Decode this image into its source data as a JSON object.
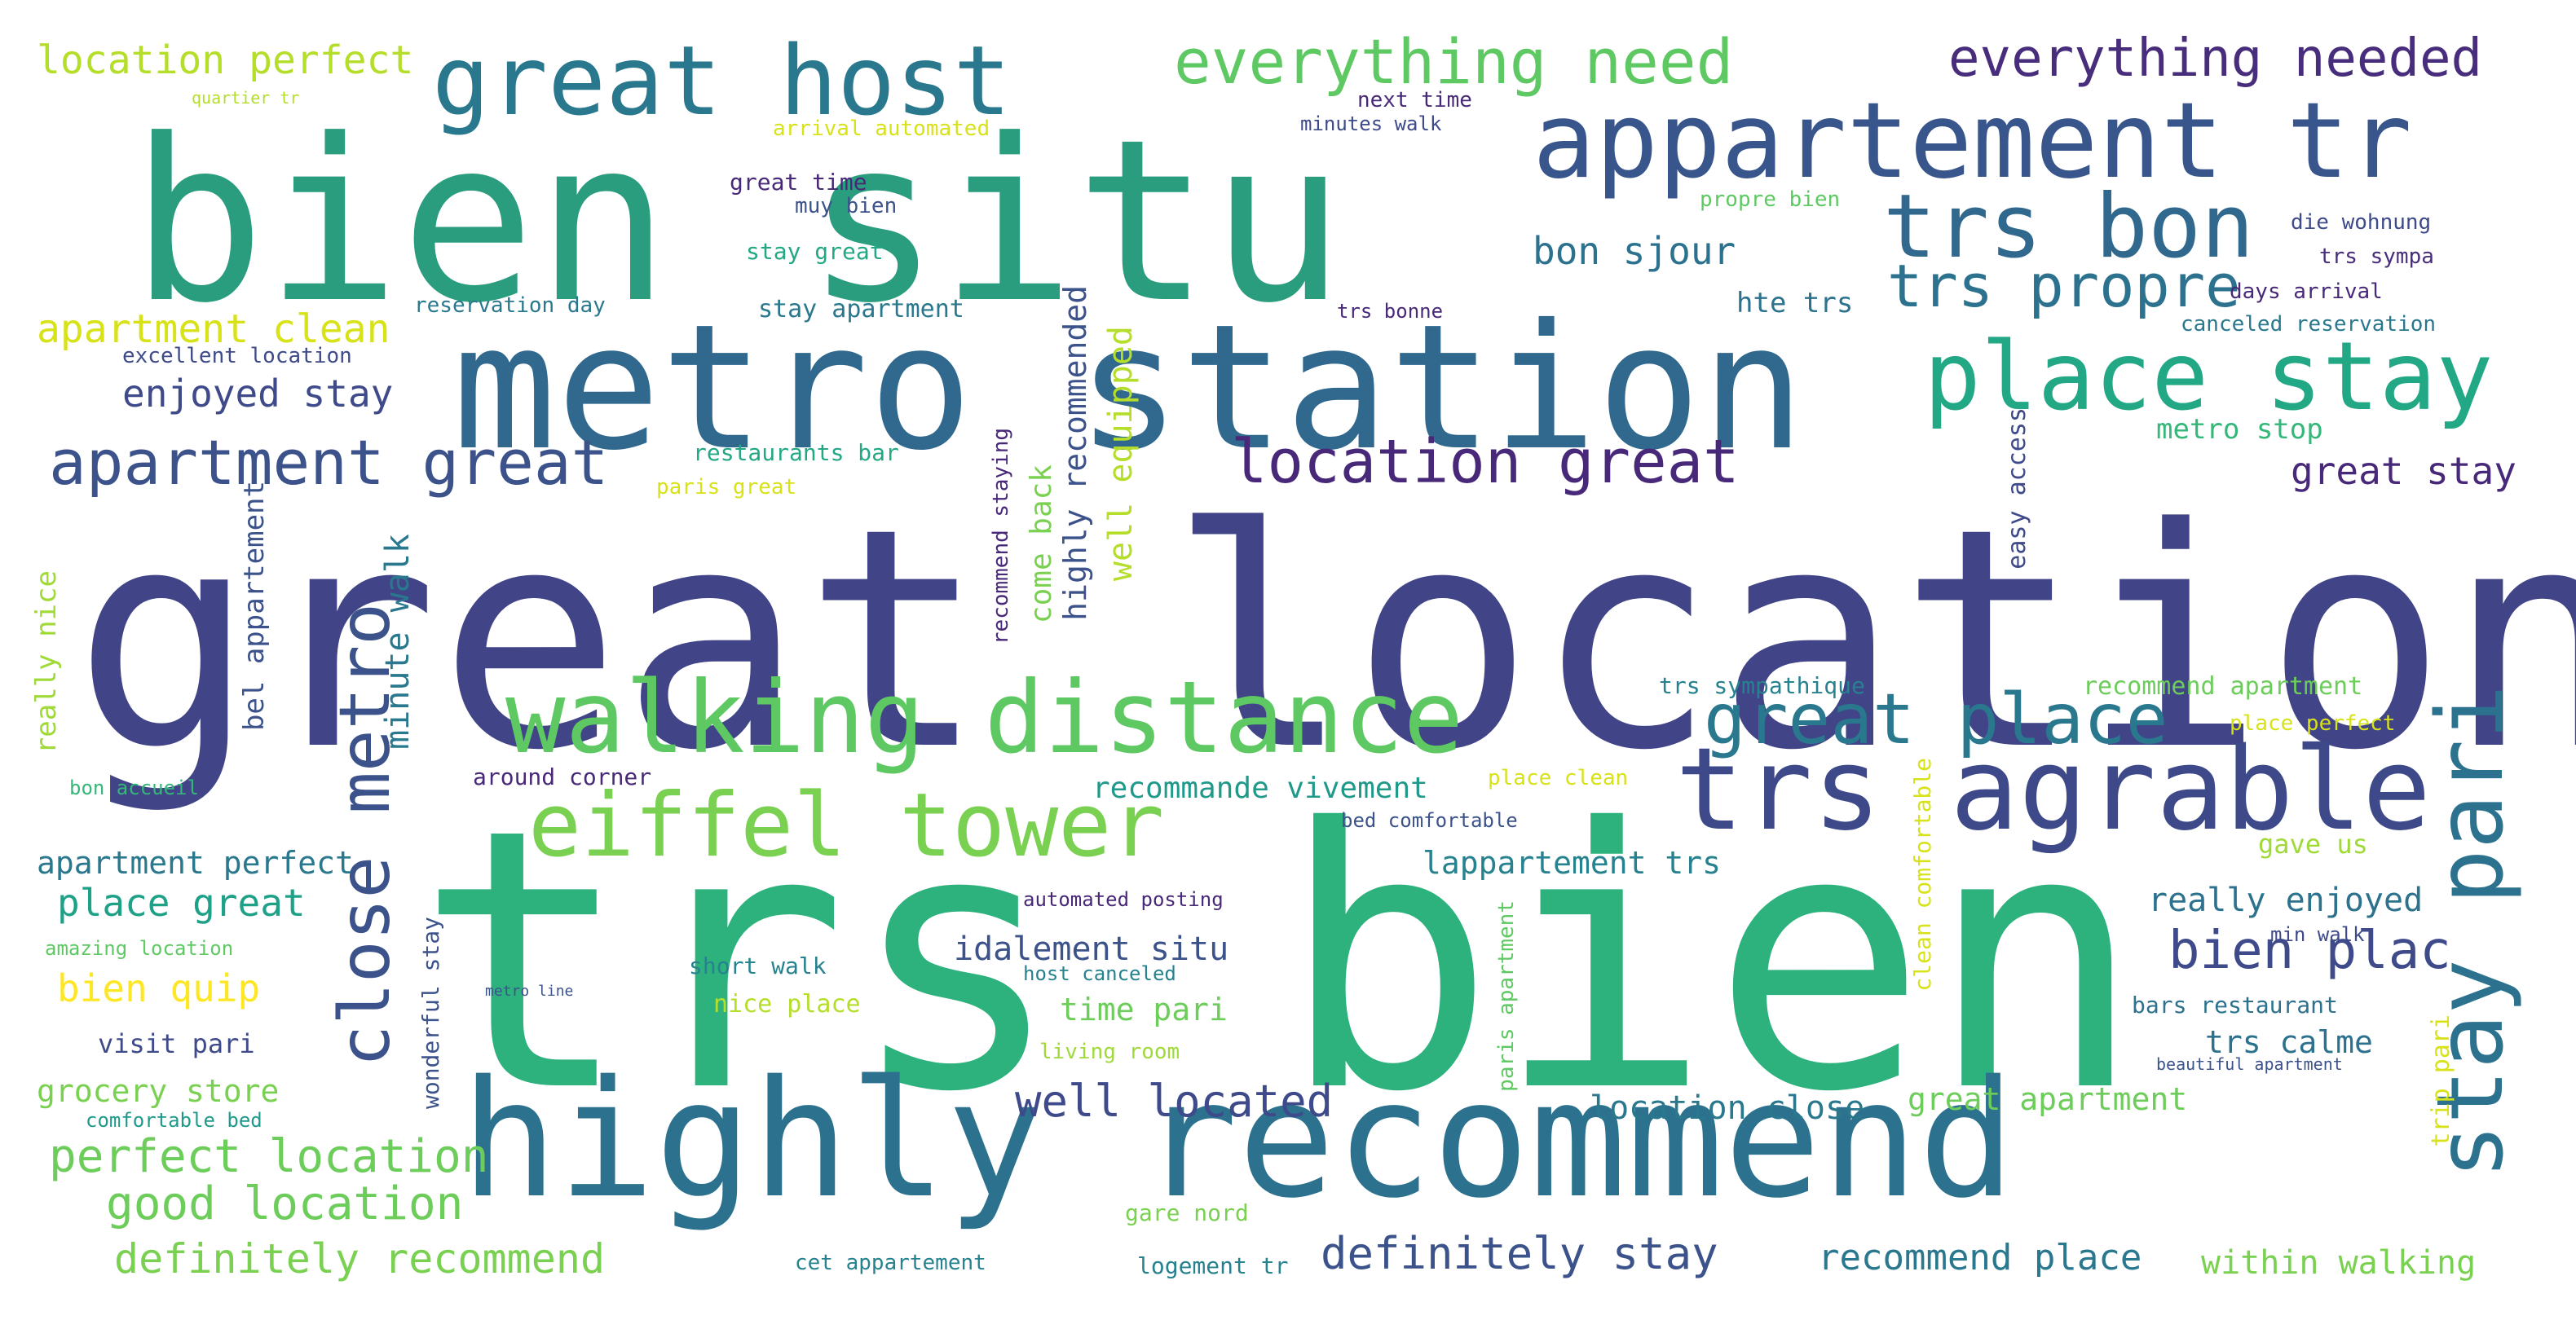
{
  "words": [
    {
      "text": "great location",
      "color": "#414487",
      "vertical": false
    },
    {
      "text": "trs bien",
      "color": "#2db27d",
      "vertical": false
    },
    {
      "text": "bien situ",
      "color": "#2a9d7e",
      "vertical": false
    },
    {
      "text": "metro station",
      "color": "#31688e",
      "vertical": false
    },
    {
      "text": "highly recommend",
      "color": "#2c728e",
      "vertical": false
    },
    {
      "text": "walking distance",
      "color": "#5ec962",
      "vertical": false
    },
    {
      "text": "trs agrable",
      "color": "#3e4989",
      "vertical": false
    },
    {
      "text": "appartement tr",
      "color": "#39568c",
      "vertical": false
    },
    {
      "text": "great host",
      "color": "#2a788e",
      "vertical": false
    },
    {
      "text": "place stay",
      "color": "#22a884",
      "vertical": false
    },
    {
      "text": "eiffel tower",
      "color": "#7ad151",
      "vertical": false
    },
    {
      "text": "trs bon",
      "color": "#31688e",
      "vertical": false
    },
    {
      "text": "stay pari",
      "color": "#2c728e",
      "vertical": true
    },
    {
      "text": "great place",
      "color": "#2a788e",
      "vertical": false
    },
    {
      "text": "close metro",
      "color": "#3b528b",
      "vertical": true
    },
    {
      "text": "location great",
      "color": "#482878",
      "vertical": false
    },
    {
      "text": "apartment great",
      "color": "#3b528b",
      "vertical": false
    },
    {
      "text": "trs propre",
      "color": "#2c728e",
      "vertical": false
    },
    {
      "text": "everything need",
      "color": "#5ec962",
      "vertical": false
    },
    {
      "text": "everything needed",
      "color": "#472d7b",
      "vertical": false
    },
    {
      "text": "bien plac",
      "color": "#3e4a89",
      "vertical": false
    },
    {
      "text": "well located",
      "color": "#3e4a89",
      "vertical": false
    },
    {
      "text": "definitely stay",
      "color": "#3b528b",
      "vertical": false
    },
    {
      "text": "perfect location",
      "color": "#6ccd5a",
      "vertical": false
    },
    {
      "text": "good location",
      "color": "#6ccd5a",
      "vertical": false
    },
    {
      "text": "definitely recommend",
      "color": "#7ad151",
      "vertical": false
    },
    {
      "text": "location perfect",
      "color": "#b5de2b",
      "vertical": false
    },
    {
      "text": "apartment clean",
      "color": "#d8e219",
      "vertical": false
    },
    {
      "text": "enjoyed stay",
      "color": "#3e4a89",
      "vertical": false
    },
    {
      "text": "place great",
      "color": "#1fa188",
      "vertical": false
    },
    {
      "text": "bien quip",
      "color": "#fde725",
      "vertical": false
    },
    {
      "text": "bon sjour",
      "color": "#2c728e",
      "vertical": false
    },
    {
      "text": "great stay",
      "color": "#482878",
      "vertical": false
    },
    {
      "text": "recommend place",
      "color": "#2a788e",
      "vertical": false
    },
    {
      "text": "within walking",
      "color": "#7ad151",
      "vertical": false
    },
    {
      "text": "location close",
      "color": "#2a788e",
      "vertical": false
    },
    {
      "text": "great apartment",
      "color": "#6ccd5a",
      "vertical": false
    },
    {
      "text": "idalement situ",
      "color": "#3b528b",
      "vertical": false
    },
    {
      "text": "time pari",
      "color": "#6ccd5a",
      "vertical": false
    },
    {
      "text": "trs calme",
      "color": "#2c728e",
      "vertical": false
    },
    {
      "text": "really enjoyed",
      "color": "#2c728e",
      "vertical": false
    },
    {
      "text": "lappartement trs",
      "color": "#26828e",
      "vertical": false
    },
    {
      "text": "apartment perfect",
      "color": "#2a788e",
      "vertical": false
    },
    {
      "text": "grocery store",
      "color": "#7ad151",
      "vertical": false
    },
    {
      "text": "recommande vivement",
      "color": "#1f9a8a",
      "vertical": false
    },
    {
      "text": "minute walk",
      "color": "#2a788e",
      "vertical": true
    },
    {
      "text": "well equipped",
      "color": "#b5de2b",
      "vertical": true
    },
    {
      "text": "come back",
      "color": "#7ad151",
      "vertical": true
    },
    {
      "text": "highly recommended",
      "color": "#3b528b",
      "vertical": true
    },
    {
      "text": "bel appartement",
      "color": "#3b528b",
      "vertical": true
    },
    {
      "text": "hte trs",
      "color": "#2c728e",
      "vertical": false
    },
    {
      "text": "metro stop",
      "color": "#35b779",
      "vertical": false
    },
    {
      "text": "easy access",
      "color": "#3e4a89",
      "vertical": true
    },
    {
      "text": "really nice",
      "color": "#a0da39",
      "vertical": true
    },
    {
      "text": "visit pari",
      "color": "#3e4a89",
      "vertical": false
    },
    {
      "text": "gave us",
      "color": "#a0da39",
      "vertical": false
    },
    {
      "text": "nice place",
      "color": "#b5de2b",
      "vertical": false
    },
    {
      "text": "short walk",
      "color": "#26828e",
      "vertical": false
    },
    {
      "text": "around corner",
      "color": "#482878",
      "vertical": false
    },
    {
      "text": "recommend apartment",
      "color": "#6ccd5a",
      "vertical": false
    },
    {
      "text": "trs sympathique",
      "color": "#26828e",
      "vertical": false
    },
    {
      "text": "stay apartment",
      "color": "#2a788e",
      "vertical": false
    },
    {
      "text": "reservation day",
      "color": "#2a788e",
      "vertical": false
    },
    {
      "text": "excellent location",
      "color": "#3e4a89",
      "vertical": false
    },
    {
      "text": "restaurants bar",
      "color": "#22a884",
      "vertical": false
    },
    {
      "text": "recommend staying",
      "color": "#482878",
      "vertical": true
    },
    {
      "text": "stay great",
      "color": "#22a884",
      "vertical": false
    },
    {
      "text": "great time",
      "color": "#482878",
      "vertical": false
    },
    {
      "text": "muy bien",
      "color": "#3b528b",
      "vertical": false
    },
    {
      "text": "arrival automated",
      "color": "#d8e219",
      "vertical": false
    },
    {
      "text": "next time",
      "color": "#482878",
      "vertical": false
    },
    {
      "text": "minutes walk",
      "color": "#3e4a89",
      "vertical": false
    },
    {
      "text": "propre bien",
      "color": "#5ec962",
      "vertical": false
    },
    {
      "text": "die wohnung",
      "color": "#3e4a89",
      "vertical": false
    },
    {
      "text": "trs sympa",
      "color": "#472d7b",
      "vertical": false
    },
    {
      "text": "days arrival",
      "color": "#482878",
      "vertical": false
    },
    {
      "text": "canceled reservation",
      "color": "#2a788e",
      "vertical": false
    },
    {
      "text": "trs bonne",
      "color": "#482878",
      "vertical": false
    },
    {
      "text": "quartier tr",
      "color": "#b5de2b",
      "vertical": false
    },
    {
      "text": "paris great",
      "color": "#d8e219",
      "vertical": false
    },
    {
      "text": "place perfect",
      "color": "#d8e219",
      "vertical": false
    },
    {
      "text": "bon accueil",
      "color": "#35b779",
      "vertical": false
    },
    {
      "text": "place clean",
      "color": "#d8e219",
      "vertical": false
    },
    {
      "text": "bed comfortable",
      "color": "#3b528b",
      "vertical": false
    },
    {
      "text": "automated posting",
      "color": "#482878",
      "vertical": false
    },
    {
      "text": "host canceled",
      "color": "#26828e",
      "vertical": false
    },
    {
      "text": "living room",
      "color": "#a0da39",
      "vertical": false
    },
    {
      "text": "amazing location",
      "color": "#5ec962",
      "vertical": false
    },
    {
      "text": "comfortable bed",
      "color": "#1f9a8a",
      "vertical": false
    },
    {
      "text": "metro line",
      "color": "#3b528b",
      "vertical": false
    },
    {
      "text": "wonderful stay",
      "color": "#3b528b",
      "vertical": true
    },
    {
      "text": "paris apartment",
      "color": "#5ec962",
      "vertical": true
    },
    {
      "text": "clean comfortable",
      "color": "#d8e219",
      "vertical": true
    },
    {
      "text": "min walk",
      "color": "#3e4a89",
      "vertical": false
    },
    {
      "text": "bars restaurant",
      "color": "#2c728e",
      "vertical": false
    },
    {
      "text": "trip pari",
      "color": "#d8e219",
      "vertical": true
    },
    {
      "text": "beautiful apartment",
      "color": "#3b528b",
      "vertical": false
    },
    {
      "text": "gare nord",
      "color": "#7ad151",
      "vertical": false
    },
    {
      "text": "cet appartement",
      "color": "#26828e",
      "vertical": false
    },
    {
      "text": "logement tr",
      "color": "#26828e",
      "vertical": false
    }
  ]
}
